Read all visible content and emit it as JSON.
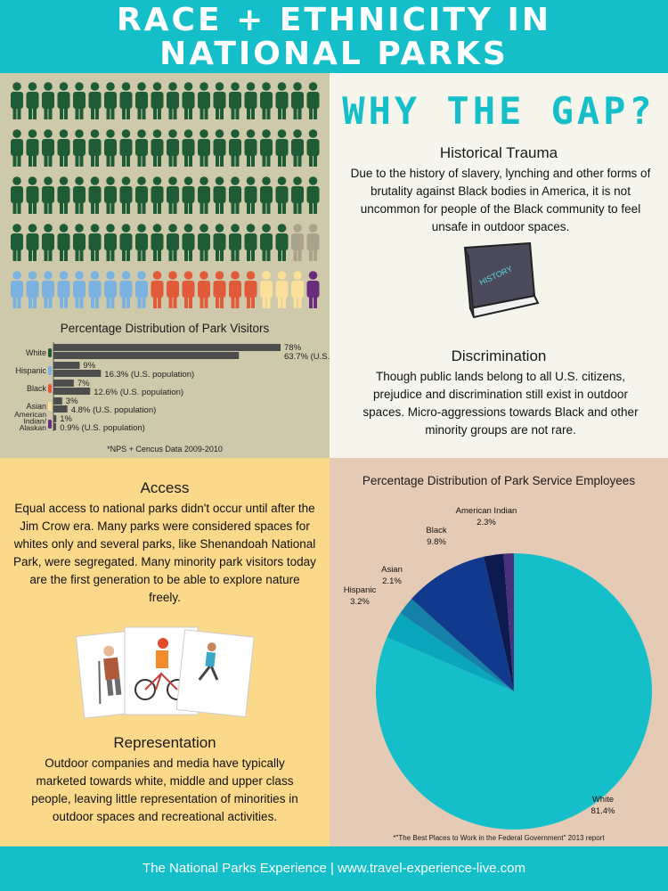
{
  "header": {
    "title_line1": "RACE + ETHNICITY IN",
    "title_line2": "NATIONAL PARKS"
  },
  "colors": {
    "teal": "#14bfca",
    "white_group": "#1e5c36",
    "hispanic": "#7bb2e0",
    "black": "#e15a3a",
    "asian": "#fbe09a",
    "american_indian": "#6a2c7d",
    "other": "#a9a38c"
  },
  "pictogram": {
    "white_count": 78,
    "other_count": 2,
    "hispanic_count": 9,
    "black_count": 7,
    "asian_count": 3,
    "american_indian_count": 1
  },
  "visitors_chart": {
    "title": "Percentage Distribution of Park Visitors",
    "source": "*NPS + Cencus Data 2009-2010",
    "rows": [
      {
        "label": "White",
        "visitors": 78,
        "population": 63.7,
        "visitors_label": "78%",
        "population_label": "63.7% (U.S. population)"
      },
      {
        "label": "Hispanic",
        "visitors": 9,
        "population": 16.3,
        "visitors_label": "9%",
        "population_label": "16.3% (U.S. population)"
      },
      {
        "label": "Black",
        "visitors": 7,
        "population": 12.6,
        "visitors_label": "7%",
        "population_label": "12.6% (U.S. population)"
      },
      {
        "label": "Asian",
        "visitors": 3,
        "population": 4.8,
        "visitors_label": "3%",
        "population_label": "4.8% (U.S. population)"
      },
      {
        "label": "American Indian/ Alaskan",
        "visitors": 1,
        "population": 0.9,
        "visitors_label": "1%",
        "population_label": "0.9% (U.S. population)"
      }
    ]
  },
  "why": {
    "title": "WHY THE GAP?",
    "trauma_title": "Historical Trauma",
    "trauma_text": "Due to the history of slavery, lynching and other forms of brutality against Black bodies in America, it is not uncommon for people of the Black community to feel unsafe in outdoor spaces.",
    "book_label": "HISTORY",
    "discrimination_title": "Discrimination",
    "discrimination_text": "Though public lands belong to all U.S. citizens, prejudice and discrimination still exist in outdoor spaces. Micro-aggressions towards Black and other minority groups are not rare."
  },
  "access": {
    "title": "Access",
    "text": "Equal access to national parks didn't occur until after the Jim Crow era. Many parks were considered spaces for whites only and several parks, like Shenandoah National Park, were segregated. Many minority park visitors today are the first generation to be able to explore nature freely."
  },
  "representation": {
    "title": "Representation",
    "text": "Outdoor companies and media have typically marketed towards white, middle and upper class people, leaving little representation of minorities in outdoor spaces and recreational activities."
  },
  "employees_chart": {
    "title": "Percentage Distribution of Park Service Employees",
    "source": "*\"The Best Places to Work in the Federal Government\" 2013 report",
    "slices": [
      {
        "label": "White",
        "value_label": "81.4%",
        "value": 81.4,
        "color": "#14bfca"
      },
      {
        "label": "Hispanic",
        "value_label": "3.2%",
        "value": 3.2,
        "color": "#0aa6bb"
      },
      {
        "label": "Asian",
        "value_label": "2.1%",
        "value": 2.1,
        "color": "#1681a8"
      },
      {
        "label": "Black",
        "value_label": "9.8%",
        "value": 9.8,
        "color": "#113a8e"
      },
      {
        "label": "American Indian",
        "value_label": "2.3%",
        "value": 2.3,
        "color": "#0d1a50"
      },
      {
        "label": "",
        "value_label": "",
        "value": 1.2,
        "color": "#4a2f7a"
      }
    ]
  },
  "footer": {
    "text": "The National Parks Experience | www.travel-experience-live.com"
  }
}
